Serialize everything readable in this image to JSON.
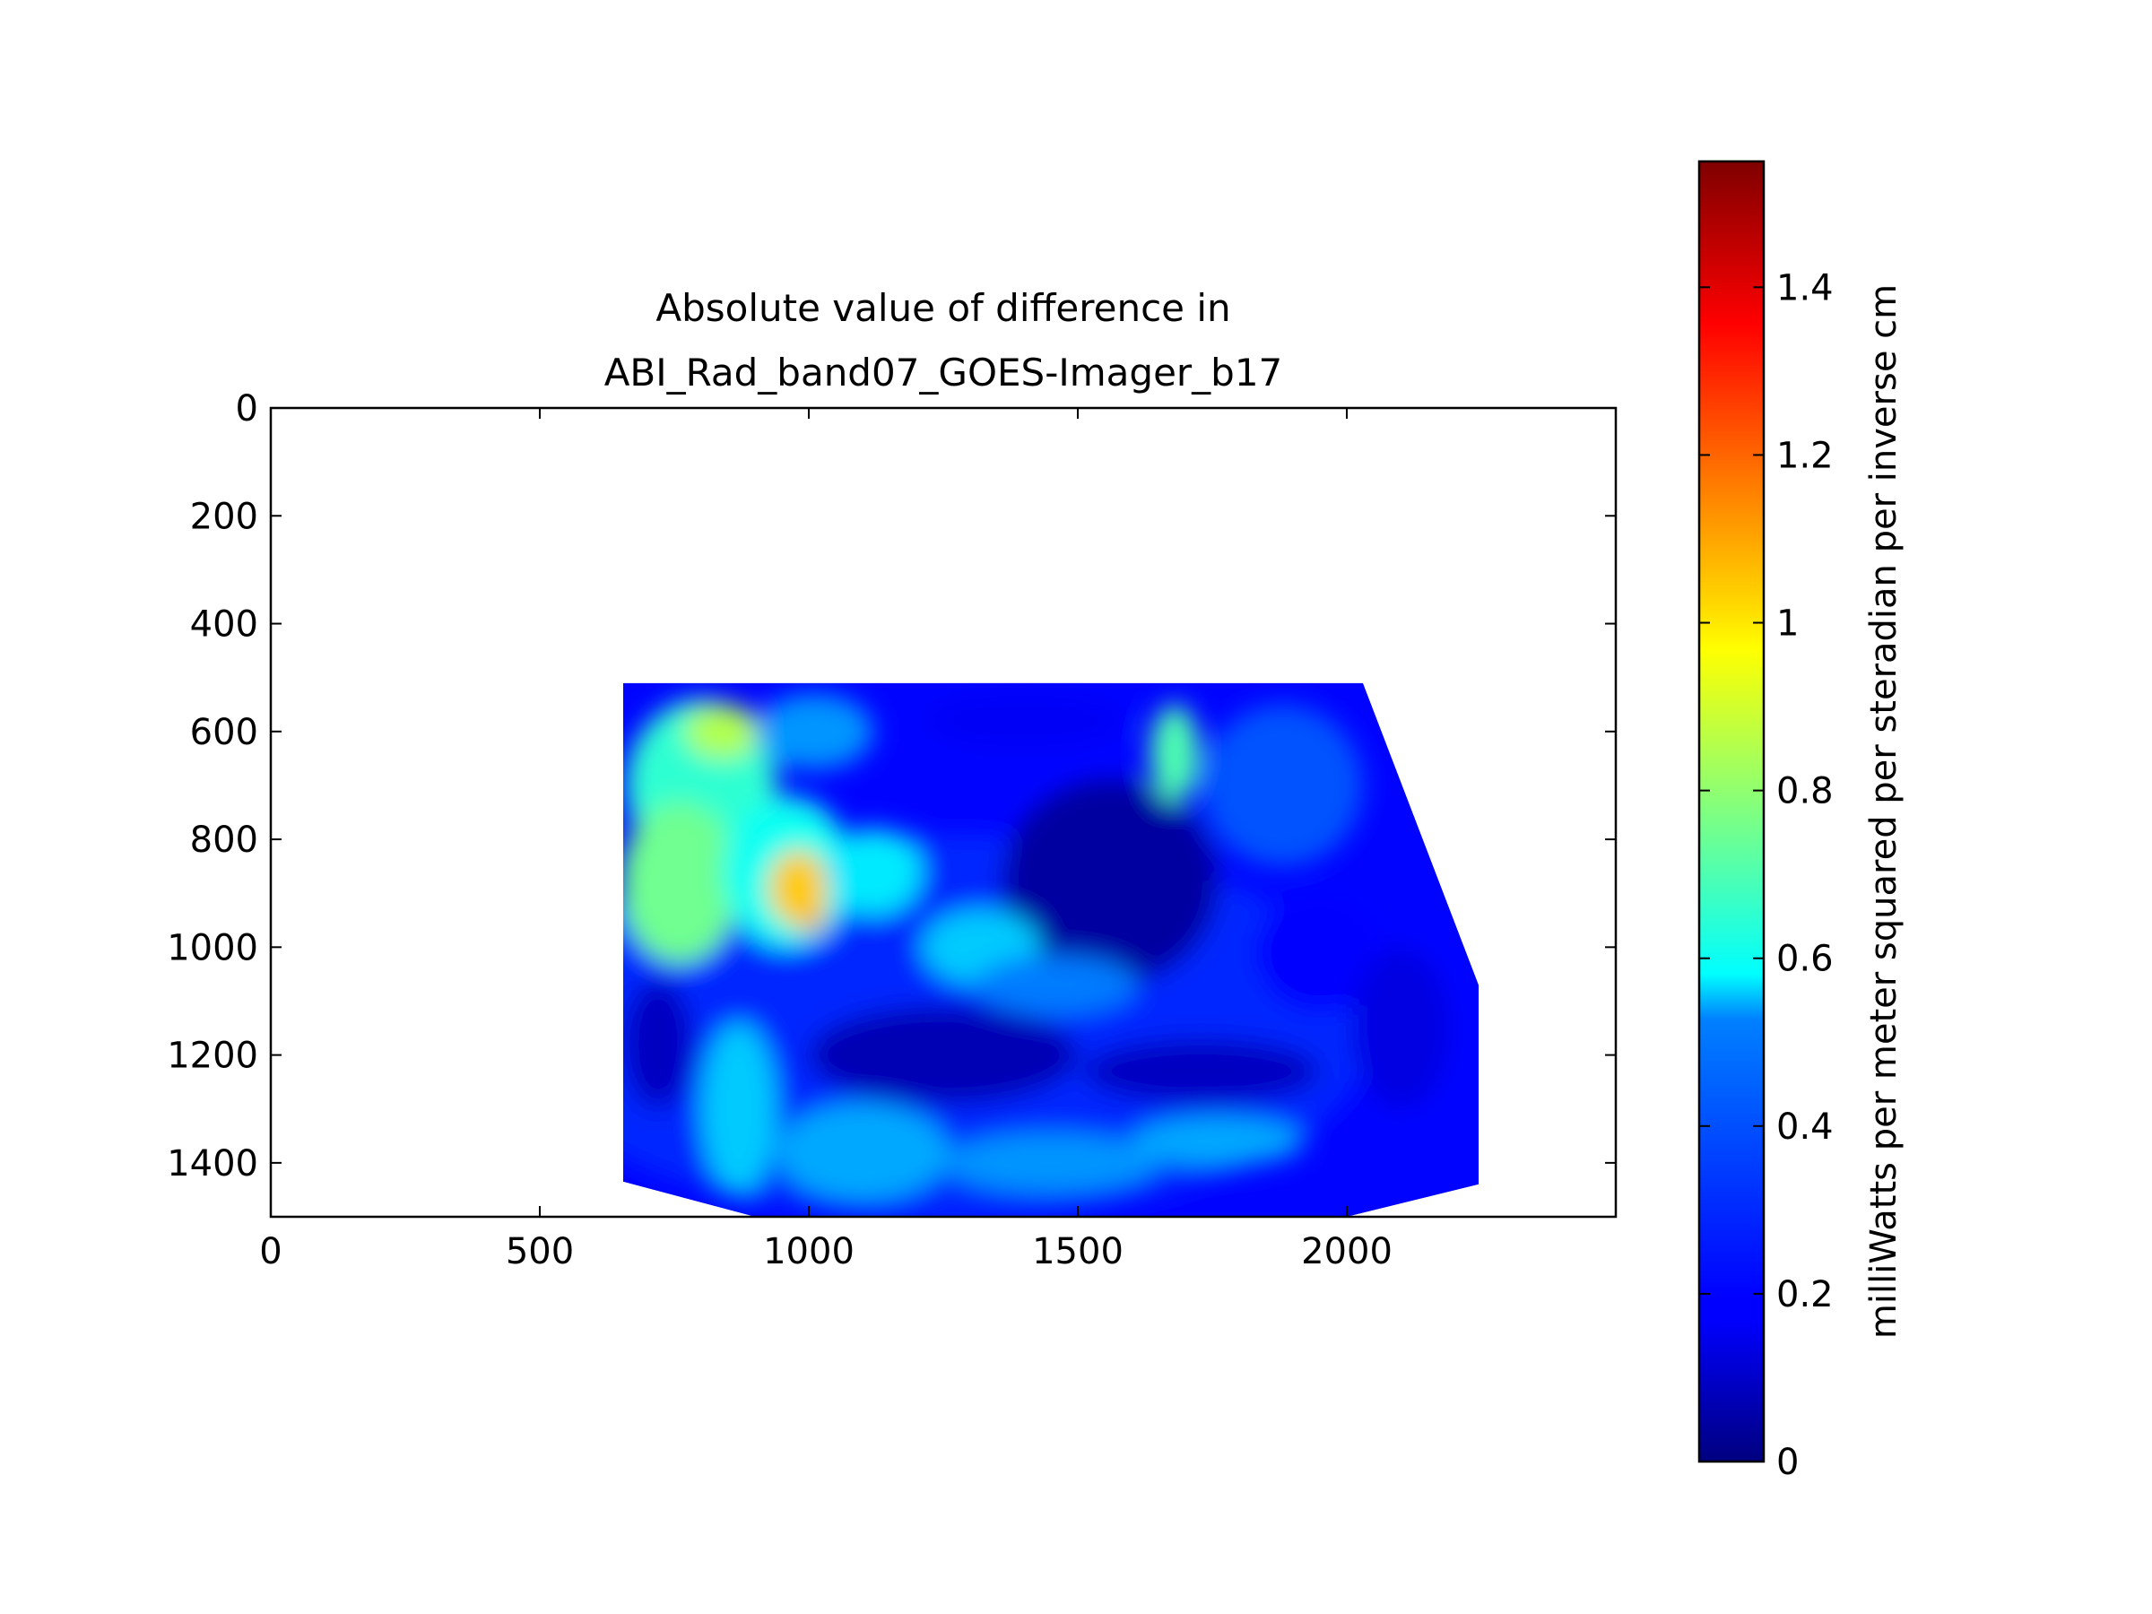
{
  "chart_data": {
    "type": "heatmap",
    "title": [
      "Absolute value of difference in",
      "ABI_Rad_band07_GOES-Imager_b17"
    ],
    "xlabel": "",
    "ylabel": "",
    "xlim": [
      0,
      2500
    ],
    "ylim": [
      1500,
      0
    ],
    "y_inverted": true,
    "grid": false,
    "x_ticks": [
      0,
      500,
      1000,
      1500,
      2000
    ],
    "x_tick_labels": [
      "0",
      "500",
      "1000",
      "1500",
      "2000"
    ],
    "y_ticks": [
      0,
      200,
      400,
      600,
      800,
      1000,
      1200,
      1400
    ],
    "y_tick_labels": [
      "0",
      "200",
      "400",
      "600",
      "800",
      "1000",
      "1200",
      "1400"
    ],
    "colormap": "jet",
    "colorbar": {
      "label": "milliWatts per meter squared per steradian per inverse cm",
      "range": [
        0,
        1.55
      ],
      "ticks": [
        0,
        0.2,
        0.4,
        0.6,
        0.8,
        1,
        1.2,
        1.4
      ],
      "tick_labels": [
        "0",
        "0.2",
        "0.4",
        "0.6",
        "0.8",
        "1",
        "1.2",
        "1.4"
      ],
      "placement": "right"
    },
    "data_region_outline": [
      [
        655,
        510
      ],
      [
        2030,
        510
      ],
      [
        2245,
        1070
      ],
      [
        2245,
        1440
      ],
      [
        2000,
        1500
      ],
      [
        900,
        1500
      ],
      [
        655,
        1435
      ]
    ],
    "regions": [
      {
        "x": 1250,
        "y": 1150,
        "rx": 800,
        "ry": 360,
        "value": 0.25
      },
      {
        "x": 800,
        "y": 700,
        "rx": 140,
        "ry": 160,
        "value": 0.65
      },
      {
        "x": 760,
        "y": 880,
        "rx": 110,
        "ry": 150,
        "value": 0.75
      },
      {
        "x": 960,
        "y": 860,
        "rx": 120,
        "ry": 140,
        "value": 0.6
      },
      {
        "x": 1000,
        "y": 930,
        "rx": 30,
        "ry": 40,
        "value": 1.3
      },
      {
        "x": 980,
        "y": 890,
        "rx": 55,
        "ry": 70,
        "value": 1.05
      },
      {
        "x": 1120,
        "y": 860,
        "rx": 90,
        "ry": 80,
        "value": 0.55
      },
      {
        "x": 720,
        "y": 1180,
        "rx": 65,
        "ry": 120,
        "value": 0.1
      },
      {
        "x": 1250,
        "y": 1200,
        "rx": 250,
        "ry": 90,
        "value": 0.08
      },
      {
        "x": 1560,
        "y": 880,
        "rx": 200,
        "ry": 190,
        "value": 0.05
      },
      {
        "x": 1730,
        "y": 1230,
        "rx": 220,
        "ry": 60,
        "value": 0.1
      },
      {
        "x": 1100,
        "y": 1380,
        "rx": 160,
        "ry": 90,
        "value": 0.45
      },
      {
        "x": 1450,
        "y": 1400,
        "rx": 200,
        "ry": 55,
        "value": 0.42
      },
      {
        "x": 1760,
        "y": 1360,
        "rx": 160,
        "ry": 45,
        "value": 0.45
      },
      {
        "x": 1320,
        "y": 1000,
        "rx": 110,
        "ry": 70,
        "value": 0.5
      },
      {
        "x": 1460,
        "y": 1070,
        "rx": 150,
        "ry": 55,
        "value": 0.38
      },
      {
        "x": 1680,
        "y": 640,
        "rx": 45,
        "ry": 90,
        "value": 0.7
      },
      {
        "x": 1880,
        "y": 700,
        "rx": 150,
        "ry": 150,
        "value": 0.32
      },
      {
        "x": 1950,
        "y": 1010,
        "rx": 120,
        "ry": 110,
        "value": 0.2
      },
      {
        "x": 840,
        "y": 600,
        "rx": 70,
        "ry": 50,
        "value": 0.85
      },
      {
        "x": 1010,
        "y": 600,
        "rx": 110,
        "ry": 70,
        "value": 0.42
      },
      {
        "x": 1400,
        "y": 580,
        "rx": 190,
        "ry": 55,
        "value": 0.18
      },
      {
        "x": 2100,
        "y": 1150,
        "rx": 90,
        "ry": 150,
        "value": 0.15
      },
      {
        "x": 870,
        "y": 1300,
        "rx": 70,
        "ry": 160,
        "value": 0.5
      }
    ]
  }
}
